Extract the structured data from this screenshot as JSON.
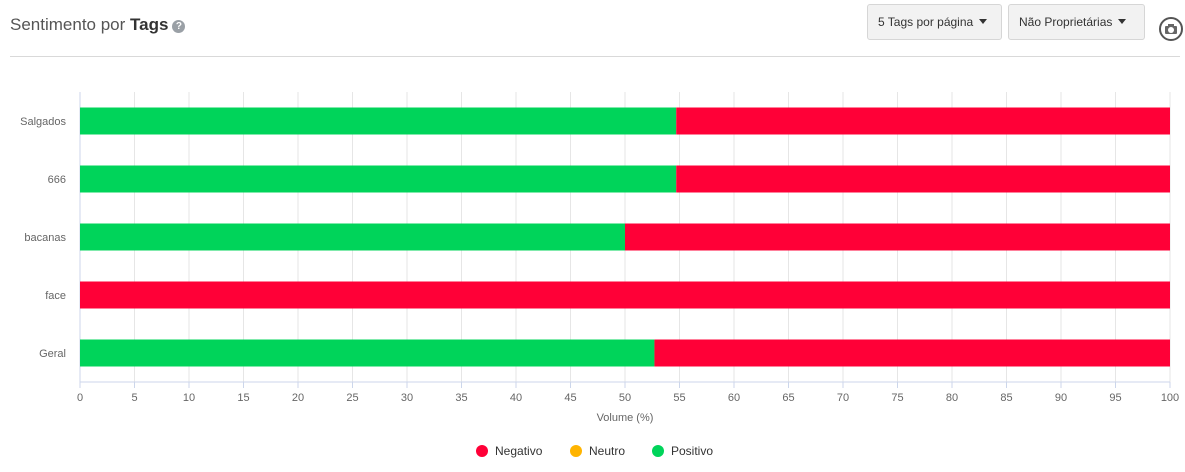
{
  "header": {
    "title_prefix": "Sentimento por",
    "title_strong": "Tags",
    "help_glyph": "?",
    "tags_per_page_label": "5 Tags por página",
    "ownership_label": "Não Proprietárias",
    "camera_icon": "camera-icon"
  },
  "chart_data": {
    "type": "bar",
    "orientation": "horizontal",
    "stacked": true,
    "categories": [
      "Salgados",
      "666",
      "bacanas",
      "face",
      "Geral"
    ],
    "series": [
      {
        "name": "Positivo",
        "color": "#00d45a",
        "values": [
          54.7,
          54.7,
          50.0,
          0,
          52.7
        ]
      },
      {
        "name": "Neutro",
        "color": "#ffb400",
        "values": [
          0,
          0,
          0,
          0,
          0
        ]
      },
      {
        "name": "Negativo",
        "color": "#ff0037",
        "values": [
          45.3,
          45.3,
          50.0,
          100,
          47.3
        ]
      }
    ],
    "xlabel": "Volume (%)",
    "xlim": [
      0,
      100
    ],
    "xticks": [
      0,
      5,
      10,
      15,
      20,
      25,
      30,
      35,
      40,
      45,
      50,
      55,
      60,
      65,
      70,
      75,
      80,
      85,
      90,
      95,
      100
    ],
    "grid": true,
    "legend_position": "bottom-center",
    "legend": [
      {
        "name": "Negativo",
        "color": "#ff0037"
      },
      {
        "name": "Neutro",
        "color": "#ffb400"
      },
      {
        "name": "Positivo",
        "color": "#00d45a"
      }
    ]
  }
}
